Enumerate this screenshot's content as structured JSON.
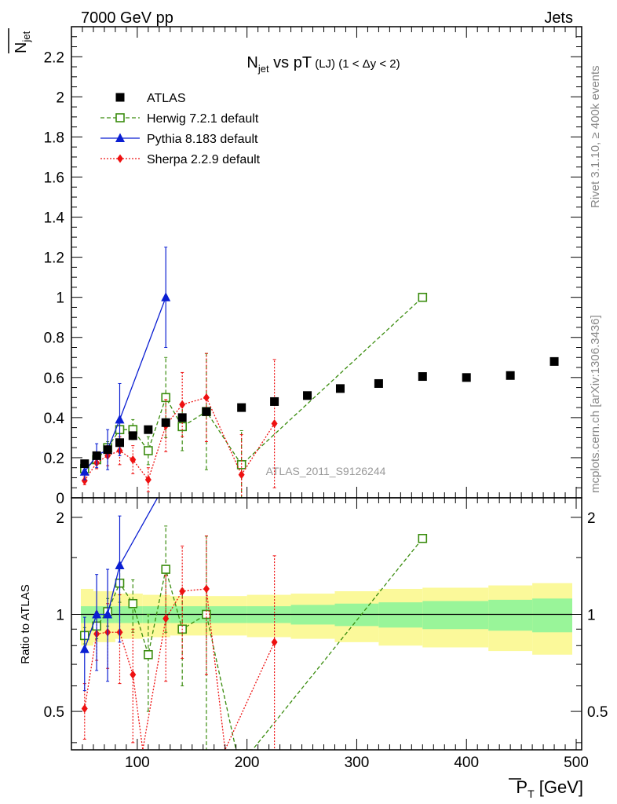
{
  "header": {
    "energy_label": "7000 GeV pp",
    "process_label": "Jets"
  },
  "side_labels": {
    "rivet": "Rivet 3.1.10, ≥ 400k events",
    "mcplots": "mcplots.cern.ch [arXiv:1306.3436]"
  },
  "watermark": "ATLAS_2011_S9126244",
  "colors": {
    "atlas": "#000000",
    "herwig": "#3a8c0e",
    "pythia": "#0a1ed2",
    "sherpa": "#ee1111",
    "band_inner": "#99f599",
    "band_outer": "#fbf99a"
  },
  "chart_data": [
    {
      "type": "scatter",
      "panel": "main",
      "title": {
        "main": "N",
        "sub": "jet",
        "rest": " vs pT",
        "small": " (LJ)  (1 < Δy < 2)"
      },
      "ylabel": {
        "main": "N",
        "sub": "jet"
      },
      "xlim": [
        40,
        505
      ],
      "ylim": [
        0,
        2.35
      ],
      "x_ticks": [
        100,
        200,
        300,
        400,
        500
      ],
      "y_ticks": [
        0,
        0.2,
        0.4,
        0.6,
        0.8,
        1,
        1.2,
        1.4,
        1.6,
        1.8,
        2,
        2.2
      ],
      "y_tick_labels": [
        "0",
        "0.2",
        "0.4",
        "0.6",
        "0.8",
        "1",
        "1.2",
        "1.4",
        "1.6",
        "1.8",
        "2",
        "2.2"
      ],
      "legend_position": "top-left",
      "series": [
        {
          "name": "ATLAS",
          "style": "data",
          "x": [
            52,
            63,
            73,
            84,
            96,
            110,
            126,
            141,
            163,
            195,
            225,
            255,
            285,
            320,
            360,
            400,
            440,
            480
          ],
          "y": [
            0.17,
            0.21,
            0.24,
            0.275,
            0.31,
            0.34,
            0.375,
            0.4,
            0.43,
            0.45,
            0.48,
            0.51,
            0.545,
            0.57,
            0.605,
            0.6,
            0.61,
            0.68
          ],
          "err": [
            0.01,
            0.01,
            0.01,
            0.01,
            0.01,
            0.01,
            0.01,
            0.01,
            0.01,
            0.01,
            0.01,
            0.01,
            0.01,
            0.01,
            0.01,
            0.01,
            0.01,
            0.01
          ]
        },
        {
          "name": "Herwig 7.2.1 default",
          "style": "dashed",
          "x": [
            52,
            63,
            73,
            84,
            96,
            110,
            126,
            141,
            163,
            195,
            360
          ],
          "y": [
            0.145,
            0.19,
            0.25,
            0.34,
            0.34,
            0.235,
            0.5,
            0.355,
            0.43,
            0.165,
            1.0
          ],
          "err": [
            0.02,
            0.025,
            0.03,
            0.05,
            0.05,
            0.07,
            0.2,
            0.12,
            0.29,
            0.17,
            0.0
          ]
        },
        {
          "name": "Pythia 8.183 default",
          "style": "solid",
          "x": [
            52,
            63,
            73,
            84,
            126
          ],
          "y": [
            0.13,
            0.21,
            0.24,
            0.39,
            1.0
          ],
          "err": [
            0.04,
            0.06,
            0.1,
            0.18,
            0.25
          ]
        },
        {
          "name": "Sherpa 2.2.9 default",
          "style": "dotted",
          "x": [
            52,
            63,
            73,
            84,
            96,
            110,
            126,
            141,
            163,
            195,
            225
          ],
          "y": [
            0.085,
            0.175,
            0.21,
            0.235,
            0.19,
            0.09,
            0.36,
            0.465,
            0.5,
            0.115,
            0.37
          ],
          "err": [
            0.02,
            0.03,
            0.05,
            0.07,
            0.07,
            0.06,
            0.13,
            0.16,
            0.22,
            0.2,
            0.32
          ]
        }
      ]
    },
    {
      "type": "scatter",
      "panel": "ratio",
      "ylabel": "Ratio to ATLAS",
      "xlabel": {
        "main": "P",
        "sub": "T",
        "rest": " [GeV]"
      },
      "xlim": [
        40,
        505
      ],
      "ylim": [
        0.38,
        2.3
      ],
      "scale": "log",
      "y_ticks": [
        0.5,
        1,
        2
      ],
      "y_tick_labels": [
        "0.5",
        "1",
        "2"
      ],
      "x_tick_labels": [
        "100",
        "200",
        "300",
        "400",
        "500"
      ],
      "band": {
        "edges": [
          40,
          60,
          80,
          105,
          130,
          160,
          200,
          240,
          280,
          320,
          360,
          420,
          460,
          500
        ],
        "inner": [
          0.06,
          0.06,
          0.06,
          0.06,
          0.06,
          0.06,
          0.06,
          0.07,
          0.08,
          0.09,
          0.1,
          0.11,
          0.12,
          0.12
        ],
        "outer": [
          0.2,
          0.18,
          0.16,
          0.15,
          0.14,
          0.14,
          0.15,
          0.16,
          0.18,
          0.2,
          0.21,
          0.23,
          0.25,
          0.26
        ]
      },
      "series": [
        {
          "name": "Herwig 7.2.1 default",
          "style": "dashed",
          "x": [
            52,
            63,
            73,
            84,
            96,
            110,
            126,
            141,
            163,
            190,
            205,
            360
          ],
          "y": [
            0.86,
            0.92,
            1.02,
            1.25,
            1.08,
            0.75,
            1.38,
            0.9,
            1.0,
            0.38,
            0.38,
            1.72
          ],
          "err": [
            0.05,
            0.08,
            0.1,
            0.16,
            0.2,
            0.25,
            0.5,
            0.3,
            0.75,
            0.0,
            0.0,
            0.0
          ],
          "marker": [
            true,
            true,
            true,
            true,
            true,
            true,
            true,
            true,
            true,
            false,
            false,
            true
          ]
        },
        {
          "name": "Pythia 8.183 default",
          "style": "solid",
          "x": [
            52,
            63,
            73,
            84,
            120
          ],
          "y": [
            0.78,
            1.0,
            1.0,
            1.42,
            2.35
          ],
          "err": [
            0.2,
            0.33,
            0.38,
            0.6,
            0.0
          ],
          "marker": [
            true,
            true,
            true,
            true,
            false
          ]
        },
        {
          "name": "Sherpa 2.2.9 default",
          "style": "dotted",
          "x": [
            52,
            63,
            73,
            84,
            96,
            105,
            126,
            141,
            163,
            180,
            225
          ],
          "y": [
            0.51,
            0.87,
            0.88,
            0.88,
            0.65,
            0.38,
            0.97,
            1.18,
            1.2,
            0.38,
            0.82
          ],
          "err": [
            0.1,
            0.15,
            0.2,
            0.27,
            0.25,
            0.0,
            0.35,
            0.45,
            0.55,
            0.0,
            0.7
          ],
          "marker": [
            true,
            true,
            true,
            true,
            true,
            false,
            true,
            true,
            true,
            false,
            true
          ]
        }
      ]
    }
  ]
}
